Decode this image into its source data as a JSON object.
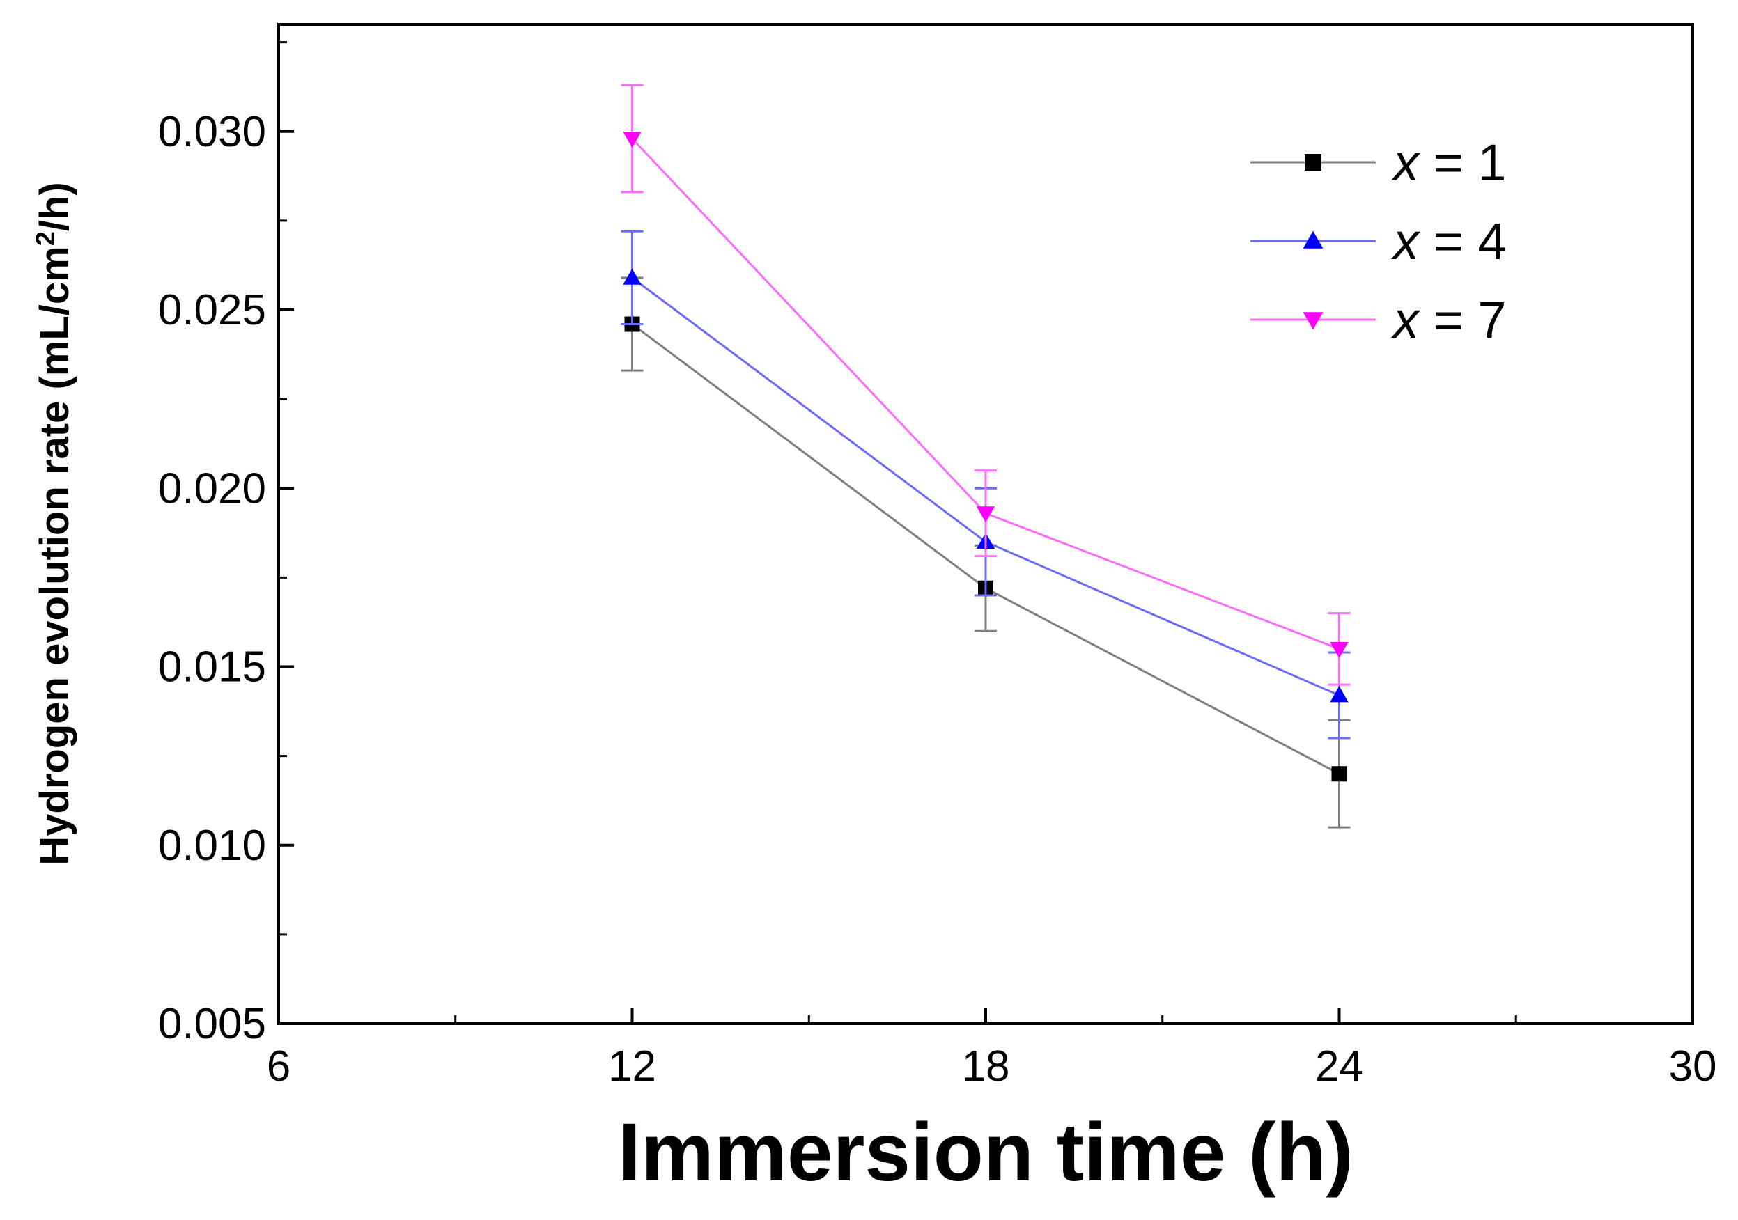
{
  "chart_data": {
    "type": "line",
    "title": "",
    "xlabel": "Immersion time (h)",
    "ylabel": "Hydrogen evolution rate (mL/cm²/h)",
    "ylabel_parts": {
      "pre": "Hydrogen evolution rate (mL/cm",
      "sup": "2",
      "post": "/h)"
    },
    "xlim": [
      6,
      30
    ],
    "ylim": [
      0.005,
      0.033
    ],
    "xticks": [
      6,
      12,
      18,
      24,
      30
    ],
    "xtick_labels": [
      "6",
      "12",
      "18",
      "24",
      "30"
    ],
    "xminor": [
      9,
      15,
      21,
      27
    ],
    "yticks": [
      0.005,
      0.01,
      0.015,
      0.02,
      0.025,
      0.03
    ],
    "ytick_labels": [
      "0.005",
      "0.010",
      "0.015",
      "0.020",
      "0.025",
      "0.030"
    ],
    "yminor": [
      0.0075,
      0.0125,
      0.0175,
      0.0225,
      0.0275,
      0.0325
    ],
    "legend_position": "top-right",
    "x": [
      12,
      18,
      24
    ],
    "series": [
      {
        "name": "x = 1",
        "var": "x",
        "eq": " = 1",
        "marker": "square",
        "color": "#000000",
        "line_color": "#7f7f7f",
        "values": [
          0.0246,
          0.0172,
          0.012
        ],
        "errors": [
          0.0013,
          0.0012,
          0.0015
        ]
      },
      {
        "name": "x = 4",
        "var": "x",
        "eq": " = 4",
        "marker": "triangle-up",
        "color": "#0000ff",
        "line_color": "#6a6aff",
        "values": [
          0.0259,
          0.0185,
          0.0142
        ],
        "errors": [
          0.0013,
          0.0015,
          0.0012
        ]
      },
      {
        "name": "x = 7",
        "var": "x",
        "eq": " = 7",
        "marker": "triangle-down",
        "color": "#ff00ff",
        "line_color": "#ff6aff",
        "values": [
          0.0298,
          0.0193,
          0.0155
        ],
        "errors": [
          0.0015,
          0.0012,
          0.001
        ]
      }
    ]
  }
}
